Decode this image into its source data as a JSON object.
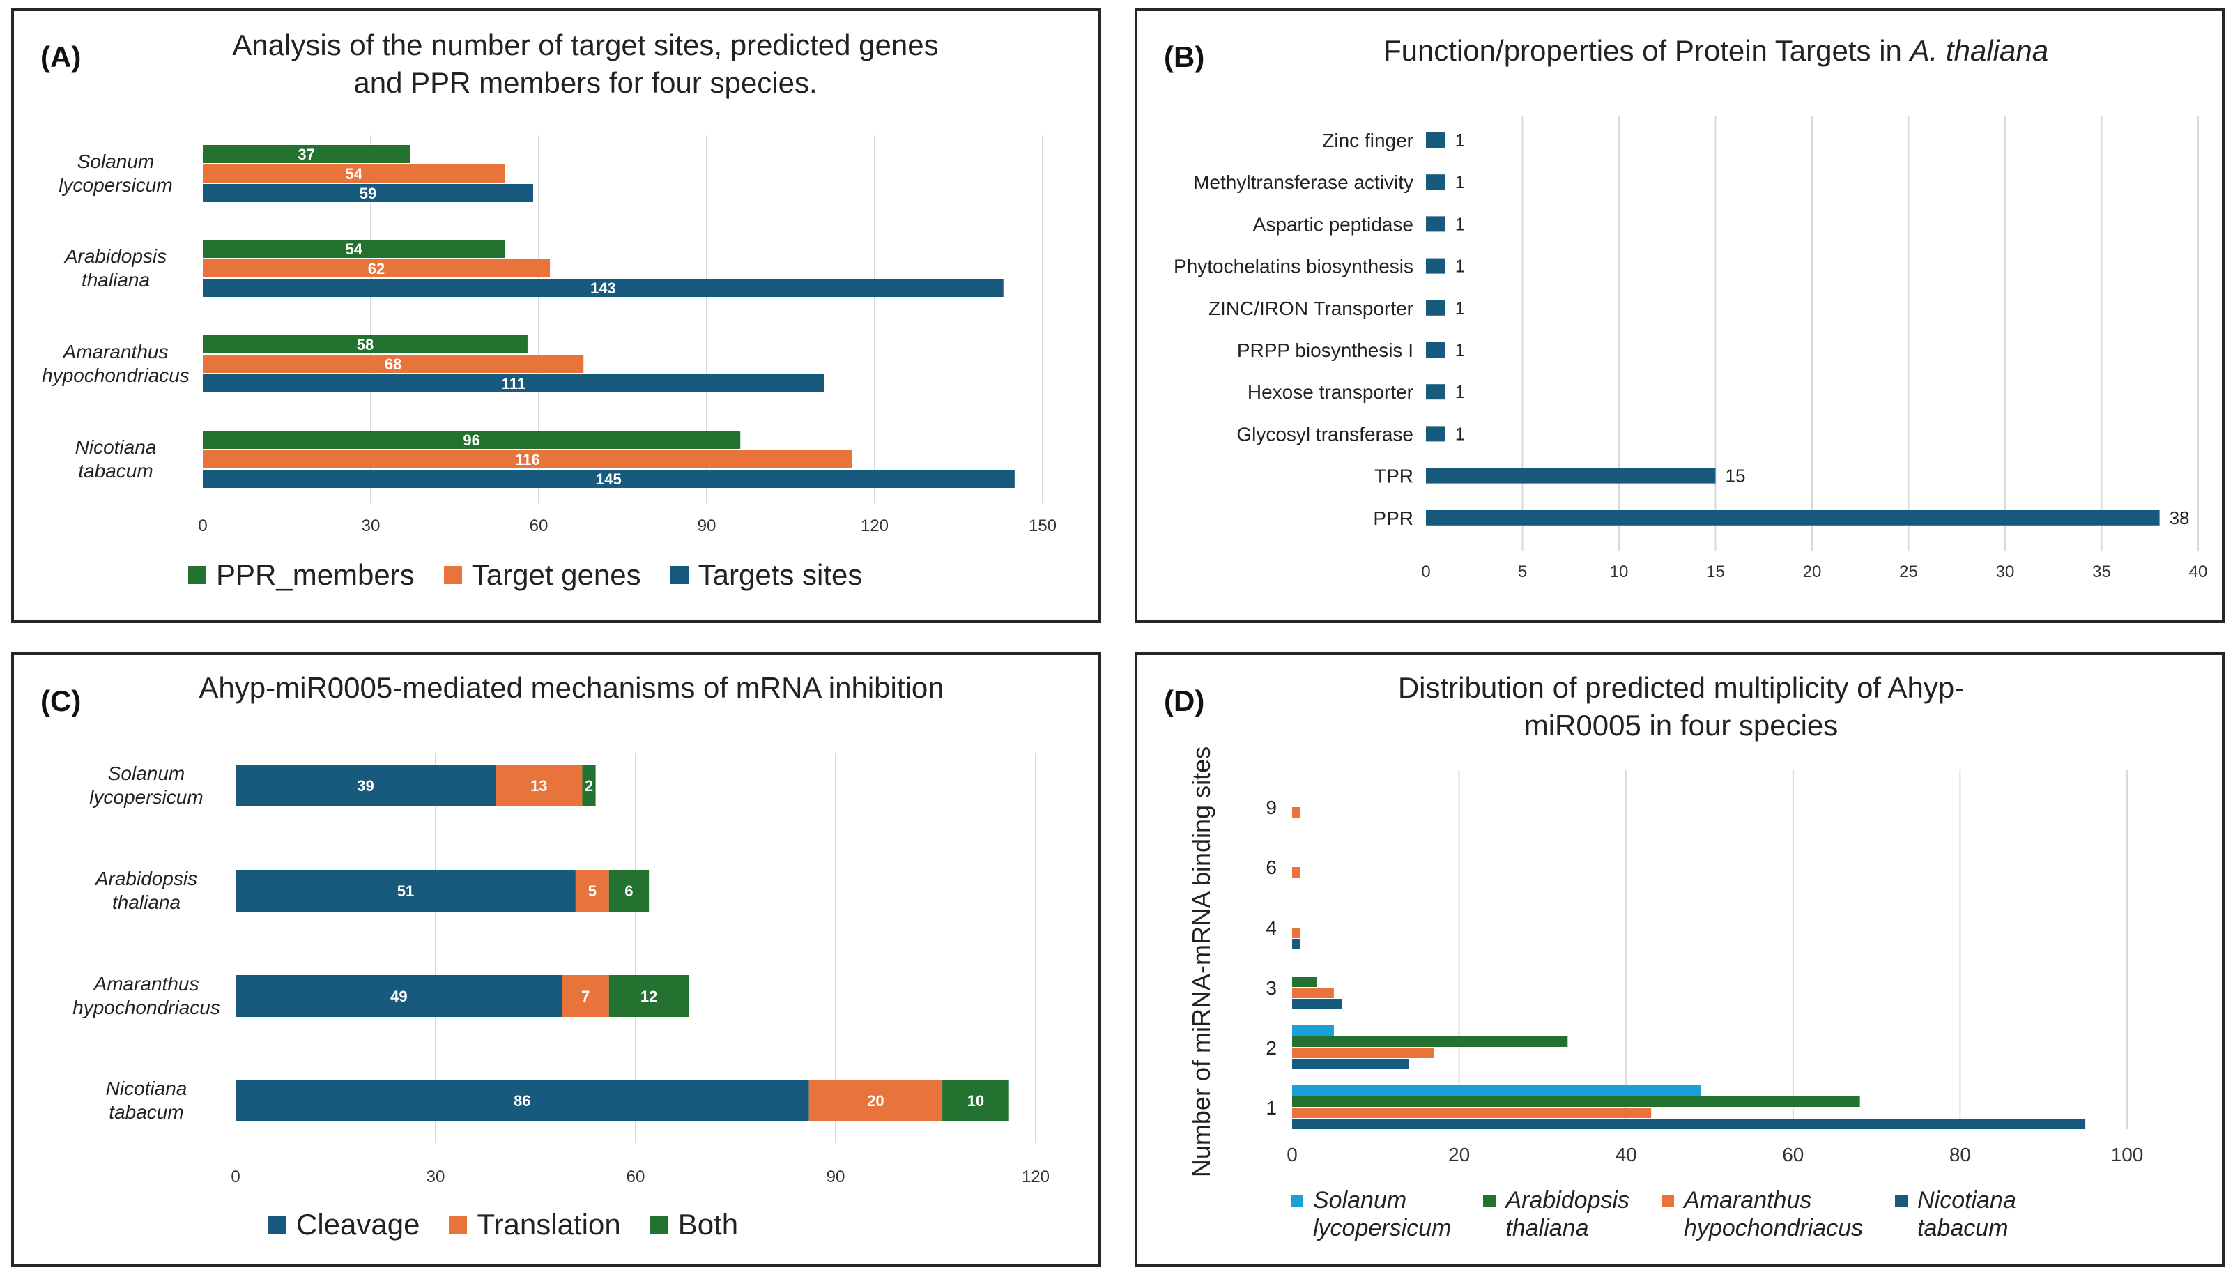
{
  "colors": {
    "green": "#23722f",
    "orange": "#e8743b",
    "blue": "#185a7d",
    "cyan": "#1aa0d8",
    "grid": "#d9d9d9"
  },
  "panels": {
    "A": {
      "tag": "(A)",
      "title_line1": "Analysis of the number of target sites, predicted genes",
      "title_line2": "and PPR members for four species."
    },
    "B": {
      "tag": "(B)",
      "title_prefix": "Function/properties of Protein Targets in ",
      "title_species": "A. thaliana"
    },
    "C": {
      "tag": "(C)",
      "title": "Ahyp-miR0005-mediated mechanisms of mRNA inhibition"
    },
    "D": {
      "tag": "(D)",
      "title_line1": "Distribution of predicted multiplicity of Ahyp-",
      "title_line2": "miR0005 in four species"
    }
  },
  "chart_data": [
    {
      "id": "A",
      "type": "bar",
      "orientation": "horizontal",
      "title": "Analysis of the number of target sites, predicted genes and PPR members for four species.",
      "categories": [
        [
          "Solanum",
          "lycopersicum"
        ],
        [
          "Arabidopsis",
          "thaliana"
        ],
        [
          "Amaranthus",
          "hypochondriacus"
        ],
        [
          "Nicotiana",
          "tabacum"
        ]
      ],
      "series": [
        {
          "name": "PPR_members",
          "color": "#23722f",
          "values": [
            37,
            54,
            58,
            96
          ]
        },
        {
          "name": "Target genes",
          "color": "#e8743b",
          "values": [
            54,
            62,
            68,
            116
          ]
        },
        {
          "name": "Targets sites",
          "color": "#185a7d",
          "values": [
            59,
            143,
            111,
            145
          ]
        }
      ],
      "xticks": [
        0,
        30,
        60,
        90,
        120,
        150
      ],
      "xlim": [
        0,
        150
      ],
      "legend": "bottom"
    },
    {
      "id": "B",
      "type": "bar",
      "orientation": "horizontal",
      "title": "Function/properties of Protein Targets in A. thaliana",
      "categories": [
        "Zinc finger",
        "Methyltransferase activity",
        "Aspartic peptidase",
        "Phytochelatins biosynthesis",
        "ZINC/IRON Transporter",
        "PRPP biosynthesis I",
        "Hexose transporter",
        "Glycosyl transferase",
        "TPR",
        "PPR"
      ],
      "values": [
        1,
        1,
        1,
        1,
        1,
        1,
        1,
        1,
        15,
        38
      ],
      "xticks": [
        0,
        5,
        10,
        15,
        20,
        25,
        30,
        35,
        40
      ],
      "xlim": [
        0,
        40
      ]
    },
    {
      "id": "C",
      "type": "bar",
      "orientation": "horizontal",
      "stacked": true,
      "title": "Ahyp-miR0005-mediated mechanisms of mRNA inhibition",
      "categories": [
        [
          "Solanum",
          "lycopersicum"
        ],
        [
          "Arabidopsis",
          "thaliana"
        ],
        [
          "Amaranthus",
          "hypochondriacus"
        ],
        [
          "Nicotiana",
          "tabacum"
        ]
      ],
      "series": [
        {
          "name": "Cleavage",
          "color": "#185a7d",
          "values": [
            39,
            51,
            49,
            86
          ]
        },
        {
          "name": "Translation",
          "color": "#e8743b",
          "values": [
            13,
            5,
            7,
            20
          ]
        },
        {
          "name": "Both",
          "color": "#23722f",
          "values": [
            2,
            6,
            12,
            10
          ]
        }
      ],
      "xticks": [
        0,
        30,
        60,
        90,
        120
      ],
      "xlim": [
        0,
        120
      ],
      "legend": "bottom"
    },
    {
      "id": "D",
      "type": "bar",
      "orientation": "horizontal",
      "title": "Distribution of predicted multiplicity of Ahyp-miR0005 in four species",
      "ylabel": "Number of miRNA-mRNA binding sites",
      "categories": [
        "9",
        "6",
        "4",
        "3",
        "2",
        "1"
      ],
      "series": [
        {
          "name_lines": [
            "Solanum",
            "lycopersicum"
          ],
          "color": "#1aa0d8",
          "values": [
            0,
            0,
            0,
            0,
            5,
            49
          ]
        },
        {
          "name_lines": [
            "Arabidopsis",
            "thaliana"
          ],
          "color": "#23722f",
          "values": [
            0,
            0,
            0,
            3,
            33,
            68
          ]
        },
        {
          "name_lines": [
            "Amaranthus",
            "hypochondriacus"
          ],
          "color": "#e8743b",
          "values": [
            1,
            1,
            1,
            5,
            17,
            43
          ]
        },
        {
          "name_lines": [
            "Nicotiana",
            "tabacum"
          ],
          "color": "#185a7d",
          "values": [
            0,
            0,
            1,
            6,
            14,
            95
          ]
        }
      ],
      "xticks": [
        0,
        20,
        40,
        60,
        80,
        100
      ],
      "xlim": [
        0,
        100
      ],
      "legend": "bottom"
    }
  ]
}
